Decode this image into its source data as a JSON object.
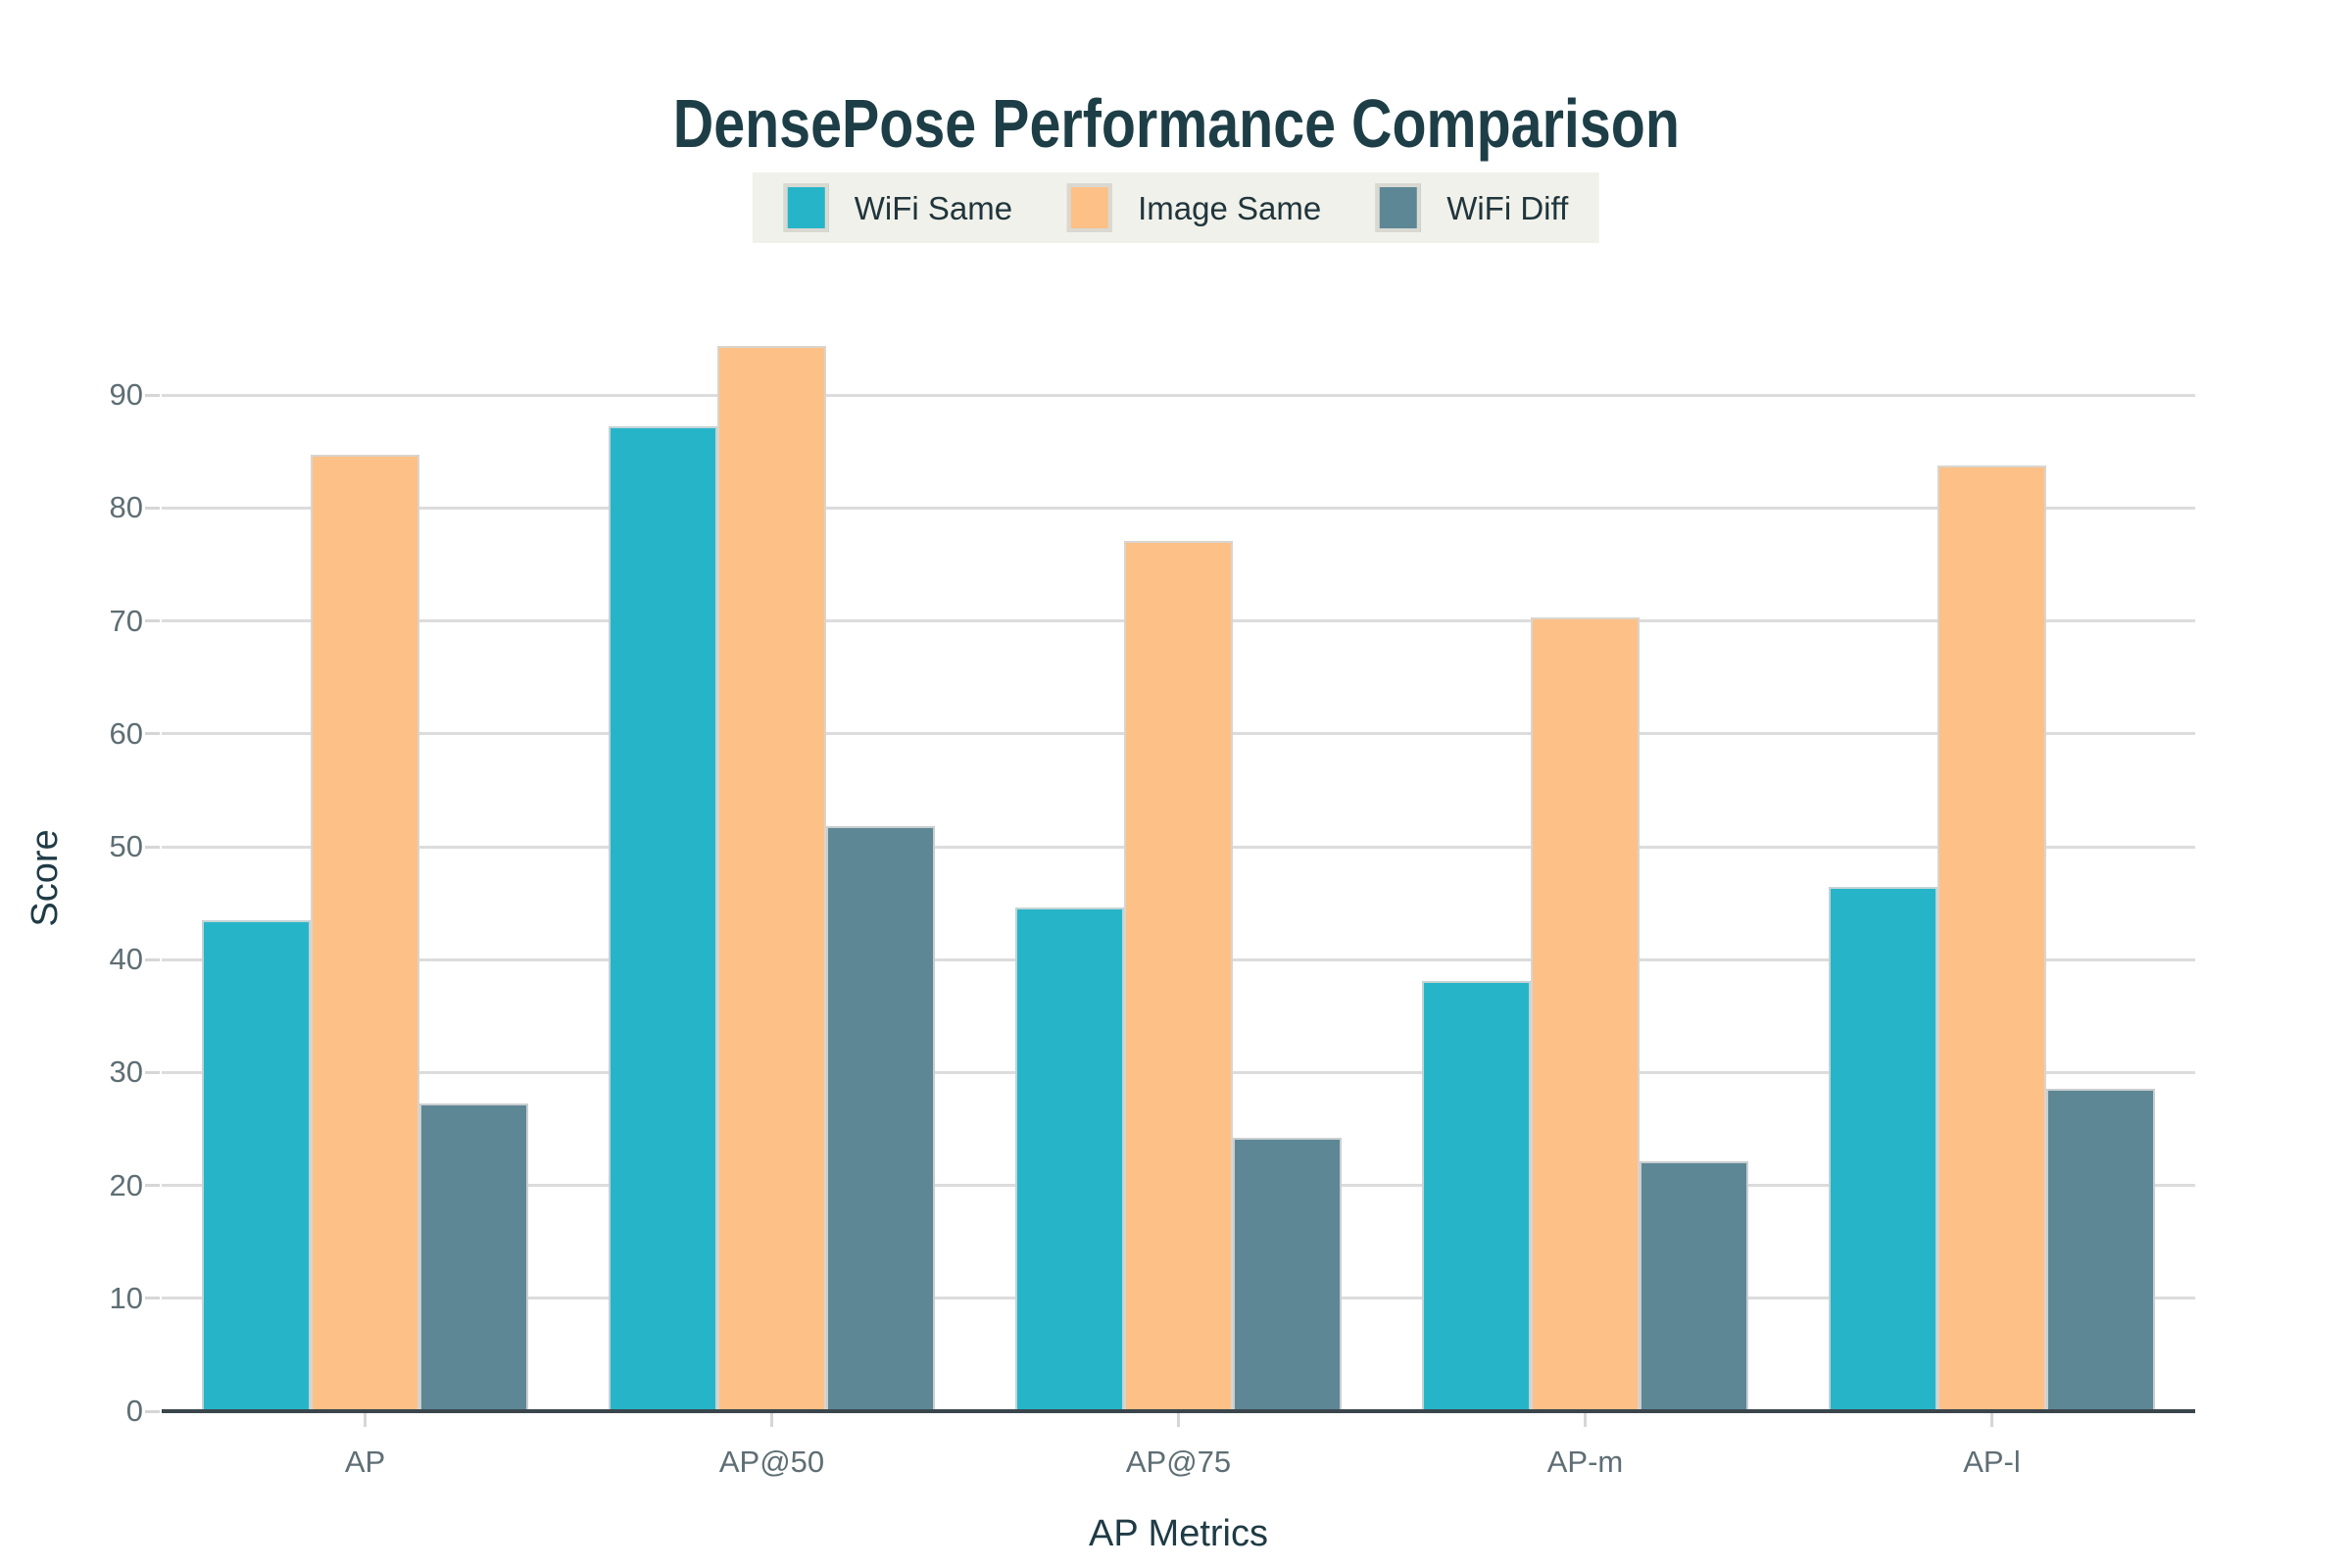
{
  "title": {
    "text": "DensePose Performance Comparison",
    "color": "#1d3e46"
  },
  "chart_data": {
    "type": "bar",
    "title": "DensePose Performance Comparison",
    "categories": [
      "AP",
      "AP@50",
      "AP@75",
      "AP-m",
      "AP-l"
    ],
    "series": [
      {
        "name": "WiFi Same",
        "color": "#26b5c8",
        "values": [
          43.5,
          87.2,
          44.6,
          38.1,
          46.4
        ]
      },
      {
        "name": "Image Same",
        "color": "#fdc086",
        "values": [
          84.7,
          94.4,
          77.1,
          70.3,
          83.8
        ]
      },
      {
        "name": "WiFi Diff",
        "color": "#5d8795",
        "values": [
          27.3,
          51.8,
          24.2,
          22.1,
          28.6
        ]
      }
    ],
    "xlabel": "AP Metrics",
    "ylabel": "Score",
    "ylim": [
      0,
      95
    ],
    "yticks": [
      0,
      10,
      20,
      30,
      40,
      50,
      60,
      70,
      80,
      90
    ],
    "grid": "horizontal",
    "legend_position": "top-center"
  },
  "colors": {
    "background": "#ffffff",
    "gridline": "#dcdcdc",
    "axis_line": "#3a454c",
    "tick_label": "#5e6e74",
    "axis_title": "#1f3b45",
    "legend_background": "#f0f1ea",
    "legend_text": "#20353c"
  }
}
